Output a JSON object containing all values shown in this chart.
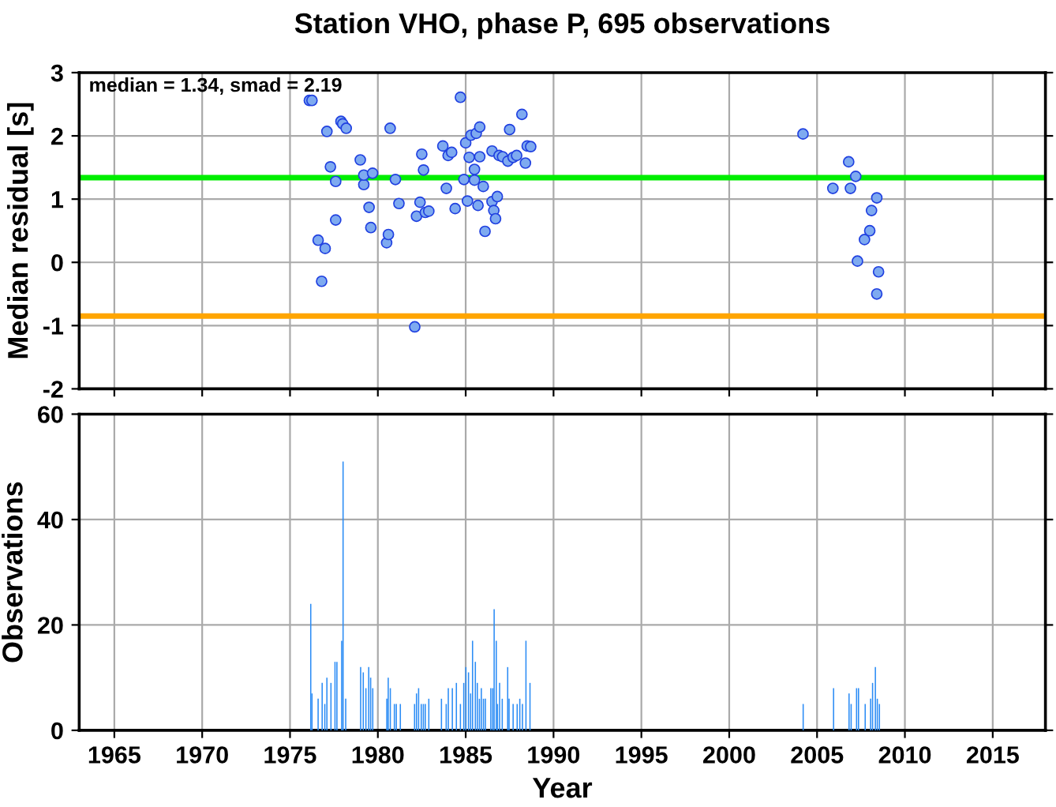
{
  "chart_data": [
    {
      "type": "scatter",
      "title": "Station VHO, phase P, 695 observations",
      "ylabel": "Median residual [s]",
      "annotations": [
        "median = 1.34, smad = 2.19"
      ],
      "marker": "circle",
      "grid": true,
      "tick_labels": "y",
      "xlim": [
        1963,
        2018
      ],
      "xticks": [
        1965,
        1970,
        1975,
        1980,
        1985,
        1990,
        1995,
        2000,
        2005,
        2010,
        2015
      ],
      "ylim": [
        -2,
        3
      ],
      "yticks": [
        -2,
        -1,
        0,
        1,
        2,
        3
      ],
      "ref_lines": [
        {
          "axis": "y",
          "value": 1.34,
          "color": "#00ee00"
        },
        {
          "axis": "y",
          "value": -0.85,
          "color": "#ffa500"
        }
      ],
      "series": [
        {
          "color": "#7eaaf0",
          "x": [
            1976.1,
            1976.25,
            1976.6,
            1976.8,
            1977.0,
            1977.1,
            1977.3,
            1977.6,
            1977.6,
            1977.9,
            1978.0,
            1978.2,
            1979.0,
            1979.2,
            1979.2,
            1979.5,
            1979.6,
            1979.7,
            1980.5,
            1980.6,
            1980.7,
            1981.0,
            1981.2,
            1982.1,
            1982.2,
            1982.4,
            1982.5,
            1982.6,
            1982.7,
            1982.9,
            1983.7,
            1983.9,
            1984.0,
            1984.2,
            1984.4,
            1984.7,
            1984.9,
            1985.0,
            1985.1,
            1985.2,
            1985.3,
            1985.5,
            1985.5,
            1985.6,
            1985.7,
            1985.8,
            1985.8,
            1986.0,
            1986.1,
            1986.5,
            1986.5,
            1986.6,
            1986.7,
            1986.8,
            1986.9,
            1987.1,
            1987.4,
            1987.5,
            1987.7,
            1987.9,
            1988.2,
            1988.4,
            1988.5,
            1988.7,
            2004.2,
            2005.9,
            2006.8,
            2006.9,
            2007.2,
            2007.3,
            2007.7,
            2008.0,
            2008.1,
            2008.4,
            2008.4,
            2008.5
          ],
          "values": [
            2.56,
            2.56,
            0.35,
            -0.3,
            0.22,
            2.07,
            1.51,
            1.28,
            0.67,
            2.23,
            2.19,
            2.12,
            1.62,
            1.23,
            1.38,
            0.87,
            0.55,
            1.41,
            0.31,
            0.44,
            2.12,
            1.31,
            0.93,
            -1.02,
            0.73,
            0.95,
            1.71,
            1.46,
            0.79,
            0.81,
            1.84,
            1.17,
            1.69,
            1.74,
            0.85,
            2.61,
            1.31,
            1.89,
            0.97,
            1.66,
            2.01,
            1.47,
            1.3,
            2.04,
            0.9,
            2.14,
            1.67,
            1.2,
            0.49,
            0.96,
            1.76,
            0.82,
            0.69,
            1.04,
            1.69,
            1.67,
            1.6,
            2.1,
            1.66,
            1.69,
            2.34,
            1.57,
            1.84,
            1.83,
            2.03,
            1.17,
            1.59,
            1.17,
            1.36,
            0.02,
            0.36,
            0.5,
            0.82,
            1.02,
            -0.5,
            -0.15
          ]
        }
      ]
    },
    {
      "type": "bar",
      "xlabel": "Year",
      "ylabel": "Observations",
      "grid": true,
      "xlim": [
        1963,
        2018
      ],
      "xticks": [
        1965,
        1970,
        1975,
        1980,
        1985,
        1990,
        1995,
        2000,
        2005,
        2010,
        2015
      ],
      "ylim": [
        0,
        60
      ],
      "yticks": [
        0,
        20,
        40,
        60
      ],
      "series": [
        {
          "color": "#2b8cf5",
          "x": [
            1976.18,
            1976.25,
            1976.6,
            1976.83,
            1976.98,
            1977.1,
            1977.33,
            1977.56,
            1977.67,
            1977.94,
            1978.02,
            1978.17,
            1979.02,
            1979.17,
            1979.32,
            1979.48,
            1979.59,
            1979.71,
            1980.51,
            1980.59,
            1980.71,
            1980.94,
            1981.05,
            1981.28,
            1982.09,
            1982.2,
            1982.32,
            1982.47,
            1982.59,
            1982.7,
            1982.9,
            1983.62,
            1983.89,
            1984.01,
            1984.24,
            1984.47,
            1984.7,
            1984.89,
            1985.01,
            1985.16,
            1985.28,
            1985.39,
            1985.55,
            1985.66,
            1985.78,
            1985.89,
            1986.01,
            1986.12,
            1986.43,
            1986.54,
            1986.62,
            1986.74,
            1986.81,
            1986.93,
            1987.08,
            1987.39,
            1987.47,
            1987.7,
            1987.93,
            1988.08,
            1988.23,
            1988.43,
            1988.66,
            2004.21,
            2005.94,
            2006.82,
            2006.94,
            2007.25,
            2007.36,
            2007.74,
            2008.05,
            2008.16,
            2008.32,
            2008.43,
            2008.55
          ],
          "values": [
            24,
            7,
            6,
            9,
            5,
            10,
            9,
            13,
            13,
            17,
            51,
            6,
            12,
            11,
            8,
            12,
            10,
            8,
            6,
            10,
            8,
            5,
            5,
            5,
            5,
            7,
            8,
            5,
            5,
            5,
            6,
            6,
            5,
            8,
            8,
            9,
            5,
            9,
            12,
            11,
            7,
            17,
            13,
            9,
            6,
            8,
            6,
            6,
            8,
            8,
            23,
            17,
            5,
            9,
            6,
            12,
            6,
            5,
            5,
            6,
            5,
            17,
            9,
            5,
            8,
            7,
            5,
            8,
            8,
            5,
            6,
            9,
            12,
            6,
            5
          ]
        }
      ]
    }
  ]
}
